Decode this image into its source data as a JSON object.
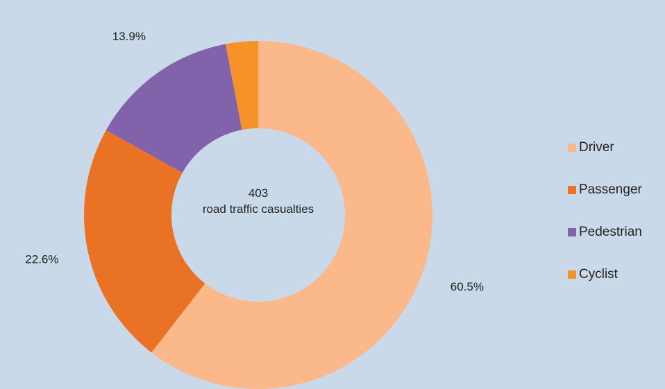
{
  "chart_data": {
    "type": "pie",
    "style": "donut",
    "center_value": "403",
    "center_label": "road traffic casualties",
    "slices": [
      {
        "label": "Driver",
        "value": 60.5,
        "display": "60.5%",
        "color": "#fbb98b"
      },
      {
        "label": "Passenger",
        "value": 22.6,
        "display": "22.6%",
        "color": "#ea7225"
      },
      {
        "label": "Pedestrian",
        "value": 13.9,
        "display": "13.9%",
        "color": "#8262ab"
      },
      {
        "label": "Cyclist",
        "value": 3.0,
        "display": "3.0%",
        "color": "#f6922a"
      }
    ],
    "legend_position": "right"
  }
}
